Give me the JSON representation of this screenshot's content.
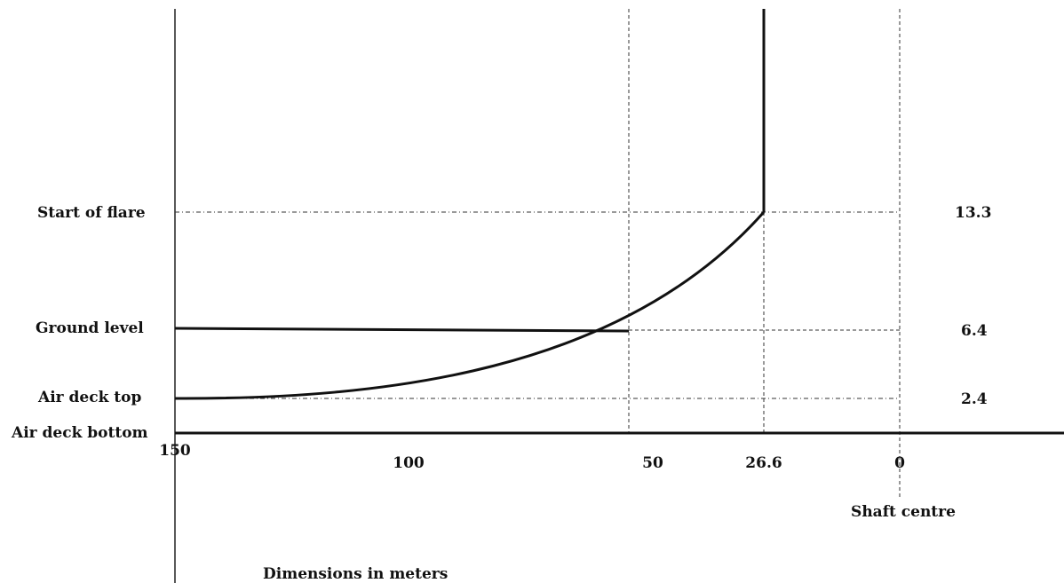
{
  "labels": {
    "start_of_flare": "Start of flare",
    "ground_level": "Ground level",
    "air_deck_top": "Air deck top",
    "air_deck_bottom": "Air deck bottom",
    "shaft_centre": "Shaft centre",
    "dimensions": "Dimensions in meters"
  },
  "heights": {
    "start_of_flare": "13.3",
    "ground_level": "6.4",
    "air_deck_top": "2.4"
  },
  "x_ticks": [
    "150",
    "100",
    "50",
    "26.6",
    "0"
  ]
}
